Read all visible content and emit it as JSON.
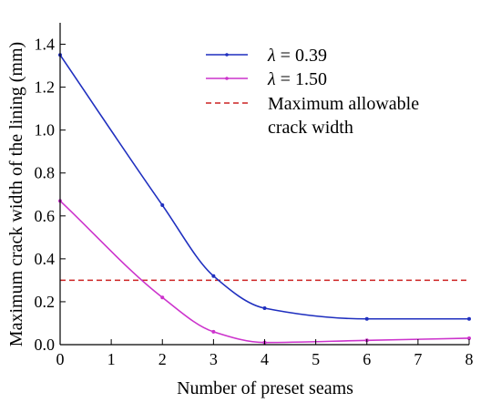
{
  "chart_data": {
    "type": "line",
    "xlabel": "Number of preset seams",
    "ylabel": "Maximum crack width of the lining (mm)",
    "xlim": [
      0,
      8
    ],
    "ylim": [
      0,
      1.5
    ],
    "xticks": [
      "0",
      "1",
      "2",
      "3",
      "4",
      "5",
      "6",
      "7",
      "8"
    ],
    "yticks": [
      "0.0",
      "0.2",
      "0.4",
      "0.6",
      "0.8",
      "1.0",
      "1.2",
      "1.4"
    ],
    "grid": false,
    "legend_position": "top-right",
    "series": [
      {
        "name_prefix": "λ",
        "name_value": " = 0.39",
        "color": "#1f2fbf",
        "x": [
          0,
          2,
          3,
          4,
          6,
          8
        ],
        "y": [
          1.35,
          0.65,
          0.32,
          0.17,
          0.12,
          0.12
        ]
      },
      {
        "name_prefix": "λ",
        "name_value": " = 1.50",
        "color": "#cc33cc",
        "x": [
          0,
          2,
          3,
          4,
          6,
          8
        ],
        "y": [
          0.67,
          0.22,
          0.06,
          0.01,
          0.02,
          0.03
        ]
      }
    ],
    "reference_line": {
      "name_line1": "Maximum allowable",
      "name_line2": "crack width",
      "y": 0.3,
      "color": "#cc2222",
      "style": "dashed"
    }
  }
}
